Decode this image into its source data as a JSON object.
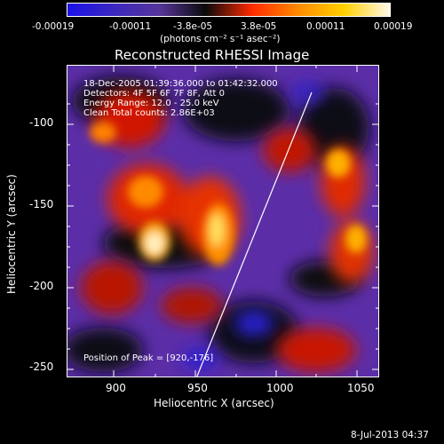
{
  "colorbar": {
    "tick_labels": [
      "-0.00019",
      "-0.00011",
      "-3.8e-05",
      "3.8e-05",
      "0.00011",
      "0.00019"
    ],
    "units_label": "(photons cm⁻² s⁻¹ asec⁻²)",
    "colors": [
      "#1a12e8",
      "#3b27c0",
      "#56359a",
      "#0a0a0a",
      "#ff2a00",
      "#ff8a00",
      "#ffd000",
      "#fff8e8"
    ]
  },
  "title": "Reconstructed RHESSI Image",
  "annotations": {
    "time": "18-Dec-2005 01:39:36.000 to 01:42:32.000",
    "detectors": "Detectors: 4F 5F 6F 7F 8F, Att 0",
    "energy": "Energy Range: 12.0 - 25.0 keV",
    "clean": "Clean    Total counts: 2.86E+03",
    "peak": "Position of Peak = [920,-176]"
  },
  "axes": {
    "xlabel": "Heliocentric X (arcsec)",
    "ylabel": "Heliocentric Y (arcsec)",
    "x_ticks": [
      "900",
      "950",
      "1000",
      "1050"
    ],
    "y_ticks": [
      "-100",
      "-150",
      "-200",
      "-250"
    ]
  },
  "timestamp": "8-Jul-2013 04:37",
  "limb_color": "#ffffff"
}
